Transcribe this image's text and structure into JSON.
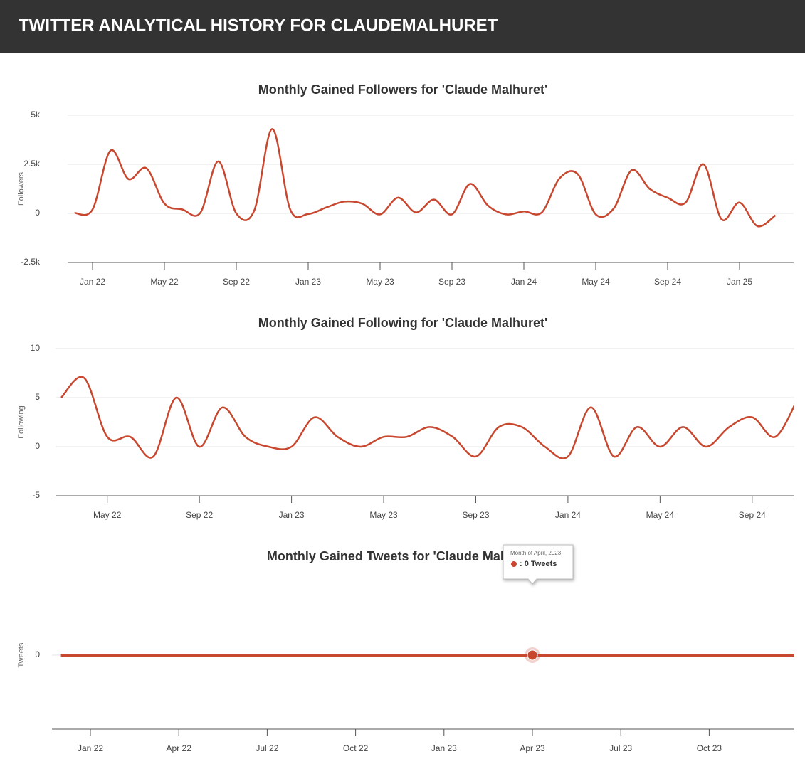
{
  "header": {
    "title": "TWITTER ANALYTICAL HISTORY FOR CLAUDEMALHURET"
  },
  "chart_data": [
    {
      "type": "line",
      "title": "Monthly Gained Followers for 'Claude Malhuret'",
      "ylabel": "Followers",
      "color": "#c8472f",
      "categories": [
        null,
        "Jan 22",
        null,
        null,
        null,
        "May 22",
        null,
        null,
        null,
        "Sep 22",
        null,
        null,
        null,
        "Jan 23",
        null,
        null,
        null,
        "May 23",
        null,
        null,
        null,
        "Sep 23",
        null,
        null,
        null,
        "Jan 24",
        null,
        null,
        null,
        "May 24",
        null,
        null,
        null,
        "Sep 24",
        null,
        null,
        null,
        "Jan 25",
        null,
        null
      ],
      "values": [
        20,
        200,
        3200,
        1750,
        2300,
        500,
        200,
        30,
        2650,
        0,
        150,
        4300,
        200,
        -30,
        300,
        600,
        500,
        -50,
        800,
        50,
        700,
        -50,
        1500,
        400,
        -50,
        100,
        50,
        1800,
        2000,
        -50,
        250,
        2200,
        1250,
        800,
        550,
        2500,
        -300,
        550,
        -650,
        -100
      ],
      "ylim": [
        -2500,
        5000
      ],
      "yticks": [
        {
          "value": -2500,
          "label": "-2.5k"
        },
        0,
        {
          "value": 2500,
          "label": "2.5k"
        },
        {
          "value": 5000,
          "label": "5k"
        }
      ],
      "grid": true
    },
    {
      "type": "line",
      "title": "Monthly Gained Following for 'Claude Malhuret'",
      "ylabel": "Following",
      "color": "#c8472f",
      "categories": [
        null,
        null,
        "May 22",
        null,
        null,
        null,
        "Sep 22",
        null,
        null,
        null,
        "Jan 23",
        null,
        null,
        null,
        "May 23",
        null,
        null,
        null,
        "Sep 23",
        null,
        null,
        null,
        "Jan 24",
        null,
        null,
        null,
        "May 24",
        null,
        null,
        null,
        "Sep 24",
        null,
        null
      ],
      "values": [
        5,
        7,
        1,
        1,
        -1,
        5,
        0,
        4,
        1,
        0,
        0,
        3,
        1,
        0,
        1,
        1,
        2,
        1,
        -1,
        2,
        2,
        0,
        -1,
        4,
        -1,
        2,
        0,
        2,
        0,
        2,
        3,
        1,
        5
      ],
      "ylim": [
        -5,
        10
      ],
      "yticks": [
        -5,
        0,
        5,
        10
      ],
      "grid": true
    },
    {
      "type": "line",
      "title": "Monthly Gained Tweets for 'Claude Malhuret'",
      "ylabel": "Tweets",
      "color": "#c8472f",
      "categories": [
        null,
        "Jan 22",
        null,
        null,
        "Apr 22",
        null,
        null,
        "Jul 22",
        null,
        null,
        "Oct 22",
        null,
        null,
        "Jan 23",
        null,
        null,
        "Apr 23",
        null,
        null,
        "Jul 23",
        null,
        null,
        "Oct 23",
        null,
        null,
        null
      ],
      "values": [
        0,
        0,
        0,
        0,
        0,
        0,
        0,
        0,
        0,
        0,
        0,
        0,
        0,
        0,
        0,
        0,
        0,
        0,
        0,
        0,
        0,
        0,
        0,
        0,
        0,
        0
      ],
      "ylim": [
        -1,
        1
      ],
      "yticks": [
        0
      ],
      "grid": true,
      "tooltip": {
        "index": 16,
        "title": "Month of April, 2023",
        "text": ": 0 Tweets"
      }
    }
  ]
}
